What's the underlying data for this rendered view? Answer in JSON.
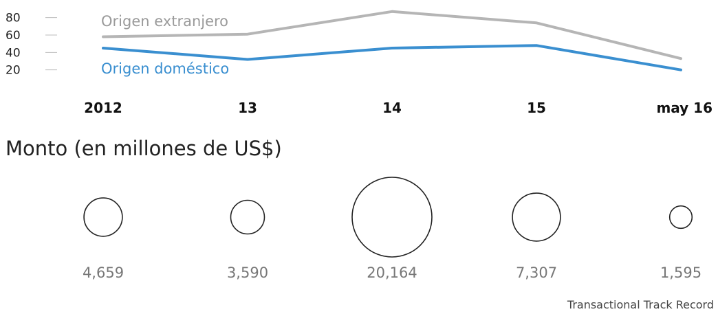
{
  "chart_data": [
    {
      "type": "line",
      "categories": [
        "2012",
        "13",
        "14",
        "15",
        "may 16"
      ],
      "yticks": [
        20,
        40,
        60,
        80
      ],
      "ylim": [
        15,
        90
      ],
      "grid": false,
      "series": [
        {
          "name": "Origen extranjero",
          "values": [
            58,
            61,
            87,
            74,
            33
          ],
          "color": "#b5b5b5"
        },
        {
          "name": "Origen doméstico",
          "values": [
            45,
            32,
            45,
            48,
            20
          ],
          "color": "#3a8fd0"
        }
      ]
    },
    {
      "type": "bubble",
      "title": "Monto (en millones de US$)",
      "categories": [
        "2012",
        "13",
        "14",
        "15",
        "may 16"
      ],
      "values": [
        4659,
        3590,
        20164,
        7307,
        1595
      ],
      "labels": [
        "4,659",
        "3,590",
        "20,164",
        "7,307",
        "1,595"
      ]
    }
  ],
  "source": "Transactional Track Record"
}
